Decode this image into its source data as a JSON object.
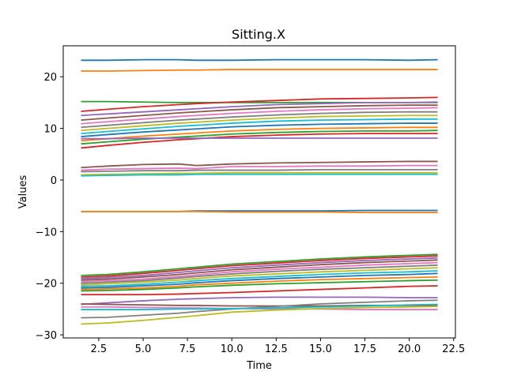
{
  "chart_data": {
    "type": "line",
    "title": "Sitting.X",
    "xlabel": "Time",
    "ylabel": "Values",
    "xlim": [
      0.5,
      22.6
    ],
    "ylim": [
      -30.6,
      26
    ],
    "xticks": [
      2.5,
      5.0,
      7.5,
      10.0,
      12.5,
      15.0,
      17.5,
      20.0,
      22.5
    ],
    "xtick_labels": [
      "2.5",
      "5.0",
      "7.5",
      "10.0",
      "12.5",
      "15.0",
      "17.5",
      "20.0",
      "22.5"
    ],
    "yticks": [
      -30,
      -20,
      -10,
      0,
      10,
      20
    ],
    "ytick_labels": [
      "−30",
      "−20",
      "−10",
      "0",
      "10",
      "20"
    ],
    "grid": false,
    "legend": "none",
    "x": [
      1.5,
      3.0,
      5.0,
      7.0,
      8.0,
      10.0,
      12.5,
      15.0,
      17.5,
      20.0,
      21.6
    ],
    "colors": [
      "#1f77b4",
      "#ff7f0e",
      "#2ca02c",
      "#d62728",
      "#9467bd",
      "#8c564b",
      "#e377c2",
      "#7f7f7f",
      "#bcbd22",
      "#17becf"
    ],
    "series": [
      {
        "values": [
          23.2,
          23.2,
          23.3,
          23.3,
          23.2,
          23.2,
          23.3,
          23.3,
          23.3,
          23.2,
          23.3
        ]
      },
      {
        "values": [
          21.1,
          21.1,
          21.2,
          21.3,
          21.3,
          21.4,
          21.4,
          21.4,
          21.4,
          21.4,
          21.4
        ]
      },
      {
        "values": [
          15.2,
          15.2,
          15.1,
          15.0,
          15.0,
          15.0,
          15.0,
          15.0,
          15.0,
          15.0,
          15.0
        ]
      },
      {
        "values": [
          13.3,
          13.7,
          14.2,
          14.6,
          14.8,
          15.1,
          15.4,
          15.7,
          15.8,
          15.9,
          16.0
        ]
      },
      {
        "values": [
          12.5,
          12.8,
          13.2,
          13.6,
          13.8,
          14.2,
          14.6,
          14.8,
          15.0,
          15.0,
          15.1
        ]
      },
      {
        "values": [
          11.6,
          12.0,
          12.5,
          13.0,
          13.2,
          13.6,
          14.0,
          14.2,
          14.4,
          14.5,
          14.5
        ]
      },
      {
        "values": [
          10.9,
          11.3,
          11.8,
          12.3,
          12.5,
          12.9,
          13.3,
          13.6,
          13.8,
          13.9,
          14.0
        ]
      },
      {
        "values": [
          10.2,
          10.6,
          11.1,
          11.6,
          11.8,
          12.2,
          12.6,
          12.9,
          13.1,
          13.2,
          13.2
        ]
      },
      {
        "values": [
          9.6,
          10.0,
          10.5,
          11.0,
          11.2,
          11.6,
          12.0,
          12.3,
          12.4,
          12.5,
          12.5
        ]
      },
      {
        "values": [
          9.0,
          9.4,
          9.9,
          10.4,
          10.6,
          11.0,
          11.4,
          11.6,
          11.7,
          11.8,
          11.8
        ]
      },
      {
        "values": [
          8.4,
          8.8,
          9.3,
          9.7,
          9.9,
          10.3,
          10.6,
          10.8,
          10.9,
          11.0,
          11.0
        ]
      },
      {
        "values": [
          7.6,
          8.0,
          8.5,
          8.9,
          9.1,
          9.5,
          9.8,
          10.0,
          10.1,
          10.2,
          10.2
        ]
      },
      {
        "values": [
          7.0,
          7.4,
          7.9,
          8.3,
          8.5,
          8.9,
          9.2,
          9.4,
          9.5,
          9.5,
          9.6
        ]
      },
      {
        "values": [
          6.2,
          6.7,
          7.3,
          7.8,
          8.0,
          8.4,
          8.7,
          8.9,
          9.0,
          9.0,
          9.0
        ]
      },
      {
        "values": [
          8.0,
          8.0,
          8.1,
          8.1,
          8.1,
          8.1,
          8.1,
          8.1,
          8.1,
          8.1,
          8.1
        ]
      },
      {
        "values": [
          2.4,
          2.7,
          3.0,
          3.1,
          2.8,
          3.1,
          3.3,
          3.4,
          3.5,
          3.6,
          3.6
        ]
      },
      {
        "values": [
          1.9,
          2.1,
          2.2,
          2.3,
          2.2,
          2.6,
          2.6,
          2.7,
          2.7,
          2.8,
          2.8
        ]
      },
      {
        "values": [
          1.6,
          1.7,
          1.8,
          1.8,
          1.9,
          1.9,
          1.9,
          2.0,
          2.0,
          2.0,
          2.0
        ]
      },
      {
        "values": [
          1.0,
          1.1,
          1.2,
          1.3,
          1.3,
          1.4,
          1.4,
          1.4,
          1.4,
          1.4,
          1.4
        ]
      },
      {
        "values": [
          0.8,
          0.9,
          1.0,
          1.0,
          1.1,
          1.1,
          1.1,
          1.1,
          1.1,
          1.1,
          1.1
        ]
      },
      {
        "values": [
          -6.1,
          -6.1,
          -6.1,
          -6.1,
          -6.0,
          -6.0,
          -6.0,
          -6.0,
          -5.9,
          -5.9,
          -5.9
        ]
      },
      {
        "values": [
          -6.1,
          -6.1,
          -6.1,
          -6.1,
          -6.1,
          -6.2,
          -6.2,
          -6.2,
          -6.3,
          -6.3,
          -6.3
        ]
      },
      {
        "values": [
          -18.5,
          -18.3,
          -17.8,
          -17.2,
          -16.9,
          -16.3,
          -15.8,
          -15.3,
          -14.9,
          -14.6,
          -14.4
        ]
      },
      {
        "values": [
          -18.8,
          -18.6,
          -18.1,
          -17.5,
          -17.2,
          -16.6,
          -16.1,
          -15.6,
          -15.2,
          -14.9,
          -14.7
        ]
      },
      {
        "values": [
          -19.1,
          -18.9,
          -18.5,
          -17.9,
          -17.6,
          -17.0,
          -16.5,
          -16.0,
          -15.6,
          -15.3,
          -15.1
        ]
      },
      {
        "values": [
          -19.4,
          -19.2,
          -18.8,
          -18.3,
          -18.0,
          -17.4,
          -16.9,
          -16.4,
          -16.0,
          -15.7,
          -15.5
        ]
      },
      {
        "values": [
          -19.7,
          -19.5,
          -19.2,
          -18.7,
          -18.4,
          -17.8,
          -17.3,
          -16.9,
          -16.5,
          -16.2,
          -16.0
        ]
      },
      {
        "values": [
          -20.0,
          -19.8,
          -19.5,
          -19.0,
          -18.7,
          -18.2,
          -17.7,
          -17.3,
          -17.0,
          -16.7,
          -16.5
        ]
      },
      {
        "values": [
          -20.3,
          -20.1,
          -19.8,
          -19.4,
          -19.1,
          -18.6,
          -18.2,
          -17.8,
          -17.5,
          -17.2,
          -17.0
        ]
      },
      {
        "values": [
          -20.6,
          -20.5,
          -20.2,
          -19.8,
          -19.5,
          -19.1,
          -18.7,
          -18.3,
          -18.0,
          -17.8,
          -17.6
        ]
      },
      {
        "values": [
          -20.9,
          -20.8,
          -20.5,
          -20.2,
          -19.9,
          -19.5,
          -19.1,
          -18.8,
          -18.5,
          -18.3,
          -18.1
        ]
      },
      {
        "values": [
          -21.2,
          -21.1,
          -20.9,
          -20.6,
          -20.3,
          -20.0,
          -19.6,
          -19.3,
          -19.1,
          -18.9,
          -18.8
        ]
      },
      {
        "values": [
          -21.5,
          -21.4,
          -21.2,
          -20.9,
          -20.7,
          -20.4,
          -20.1,
          -19.9,
          -19.7,
          -19.5,
          -19.4
        ]
      },
      {
        "values": [
          -22.2,
          -22.2,
          -22.2,
          -22.1,
          -22.0,
          -21.8,
          -21.5,
          -21.2,
          -20.9,
          -20.6,
          -20.5
        ]
      },
      {
        "values": [
          -24.1,
          -23.8,
          -23.4,
          -23.1,
          -23.0,
          -22.8,
          -22.7,
          -22.7,
          -22.7,
          -22.8,
          -22.8
        ]
      },
      {
        "values": [
          -24.0,
          -24.1,
          -24.2,
          -24.3,
          -24.3,
          -24.4,
          -24.4,
          -24.4,
          -24.3,
          -24.3,
          -24.3
        ]
      },
      {
        "values": [
          -24.6,
          -24.6,
          -24.7,
          -24.8,
          -24.8,
          -24.9,
          -25.0,
          -25.0,
          -25.1,
          -25.1,
          -25.1
        ]
      },
      {
        "values": [
          -26.7,
          -26.6,
          -26.2,
          -25.8,
          -25.5,
          -25.0,
          -24.5,
          -24.0,
          -23.7,
          -23.4,
          -23.3
        ]
      },
      {
        "values": [
          -27.9,
          -27.7,
          -27.2,
          -26.6,
          -26.3,
          -25.6,
          -25.2,
          -24.9,
          -24.7,
          -24.6,
          -24.5
        ]
      },
      {
        "values": [
          -25.1,
          -25.1,
          -25.1,
          -25.0,
          -25.0,
          -24.9,
          -24.8,
          -24.6,
          -24.4,
          -24.2,
          -24.1
        ]
      }
    ]
  }
}
